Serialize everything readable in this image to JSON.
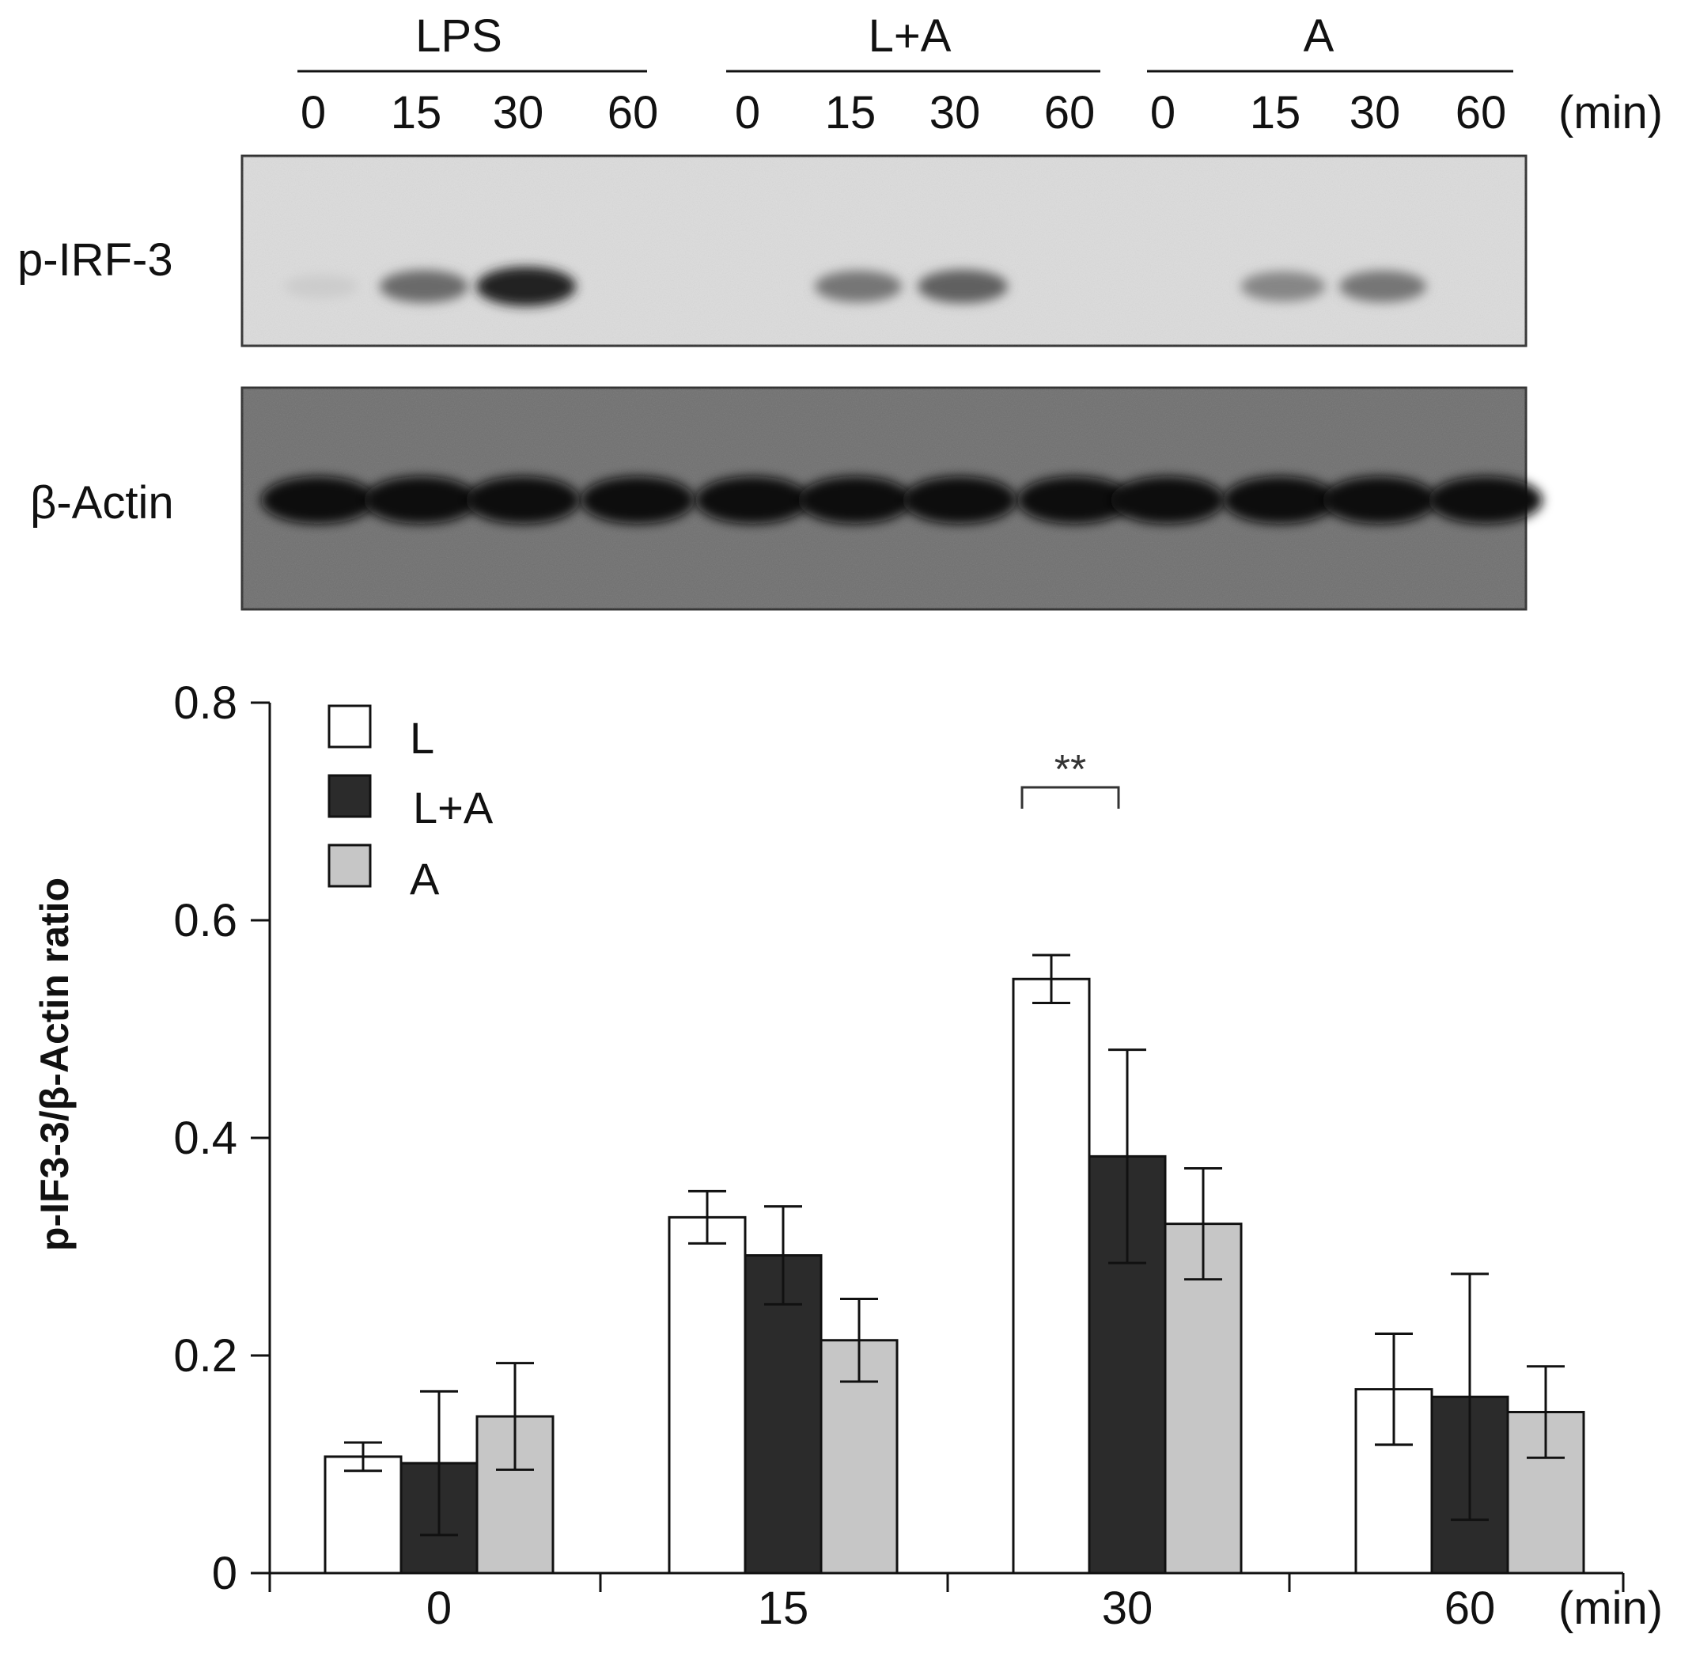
{
  "blot": {
    "groups": [
      {
        "label": "LPS",
        "times": [
          "0",
          "15",
          "30",
          "60"
        ]
      },
      {
        "label": "L+A",
        "times": [
          "0",
          "15",
          "30",
          "60"
        ]
      },
      {
        "label": "A",
        "times": [
          "0",
          "15",
          "30",
          "60"
        ]
      }
    ],
    "time_unit": "(min)",
    "rows": [
      {
        "label": "p-IRF-3",
        "intensities": [
          0.08,
          0.55,
          0.9,
          0.0,
          0.0,
          0.5,
          0.6,
          0.0,
          0.0,
          0.42,
          0.5,
          0.0
        ]
      },
      {
        "label": "β-Actin",
        "intensities": [
          1,
          1,
          1,
          1,
          1,
          1,
          1,
          1,
          1,
          1,
          1,
          1
        ]
      }
    ]
  },
  "chart_data": {
    "type": "bar",
    "categories": [
      "0",
      "15",
      "30",
      "60"
    ],
    "x_unit": "(min)",
    "ylabel": "p-IF3-3/β-Actin ratio",
    "ylim": [
      0,
      0.8
    ],
    "yticks": [
      "0",
      "0.2",
      "0.4",
      "0.6",
      "0.8"
    ],
    "legend_position": "top-left",
    "series": [
      {
        "name": "L",
        "color": "#ffffff",
        "values": [
          0.107,
          0.327,
          0.546,
          0.169
        ],
        "errors": [
          0.013,
          0.024,
          0.022,
          0.051
        ]
      },
      {
        "name": "L+A",
        "color": "#2b2b2b",
        "values": [
          0.101,
          0.292,
          0.383,
          0.162
        ],
        "errors": [
          0.066,
          0.045,
          0.098,
          0.113
        ]
      },
      {
        "name": "A",
        "color": "#c6c6c6",
        "values": [
          0.144,
          0.214,
          0.321,
          0.148
        ],
        "errors": [
          0.049,
          0.038,
          0.051,
          0.042
        ]
      }
    ],
    "annotations": [
      {
        "text": "**",
        "category": "30",
        "between": [
          "L",
          "L+A"
        ]
      }
    ]
  }
}
